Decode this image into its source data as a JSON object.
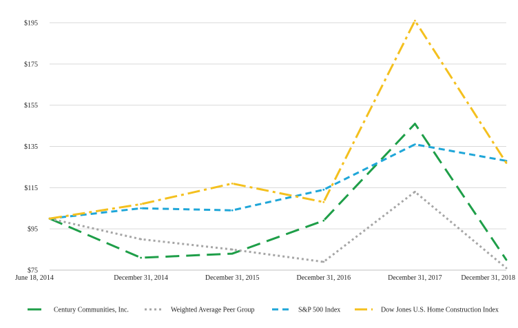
{
  "chart_data": {
    "type": "line",
    "x": [
      "June 18, 2014",
      "December 31, 2014",
      "December 31, 2015",
      "December 31, 2016",
      "December 31, 2017",
      "December 31, 2018"
    ],
    "ylim": [
      75,
      195
    ],
    "yticks": [
      75,
      95,
      115,
      135,
      155,
      175,
      195
    ],
    "ytick_labels": [
      "$75",
      "$95",
      "$115",
      "$135",
      "$155",
      "$175",
      "$195"
    ],
    "grid": true,
    "legend_position": "bottom",
    "series": [
      {
        "name": "Century Communities, Inc.",
        "color": "#1e9e48",
        "dash": "long-dash",
        "values": [
          100,
          81,
          83,
          99,
          146,
          80
        ]
      },
      {
        "name": "Weighted Average Peer Group",
        "color": "#a6a6a6",
        "dash": "dotted",
        "values": [
          100,
          90,
          85,
          79,
          113,
          76
        ]
      },
      {
        "name": "S&P 500 Index",
        "color": "#1fa6d8",
        "dash": "dashed",
        "values": [
          100,
          105,
          104,
          114,
          136,
          128
        ]
      },
      {
        "name": "Dow Jones U.S. Home Construction Index",
        "color": "#f4c01e",
        "dash": "dash-dot",
        "values": [
          100,
          107,
          117,
          108,
          196,
          127
        ]
      }
    ]
  }
}
